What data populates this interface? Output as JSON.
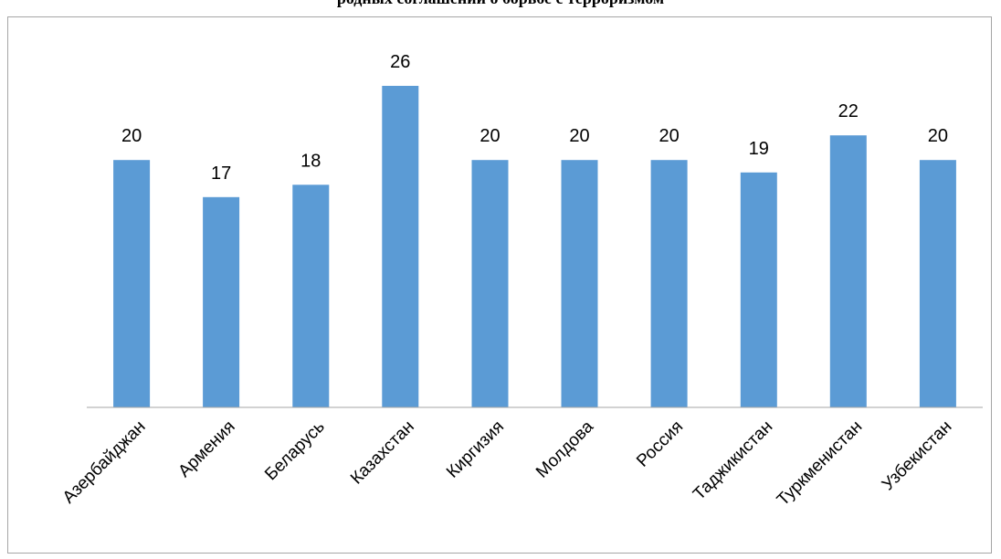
{
  "chart_data": {
    "type": "bar",
    "title": "родных соглашений о борьбе с терроризмом",
    "categories": [
      "Азербайджан",
      "Армения",
      "Беларусь",
      "Казахстан",
      "Киргизия",
      "Молдова",
      "Россия",
      "Таджикистан",
      "Туркменистан",
      "Узбекистан"
    ],
    "series": [
      {
        "values": [
          20,
          17,
          18,
          26,
          20,
          20,
          20,
          19,
          22,
          20
        ]
      }
    ],
    "xlabel": "",
    "ylabel": "",
    "ylim": [
      0,
      26
    ],
    "grid": false,
    "legend": "none",
    "data_labels": true,
    "colors": {
      "bar": "#5b9bd5",
      "axis": "#a6a6a6",
      "border": "#a6a6a6"
    }
  }
}
